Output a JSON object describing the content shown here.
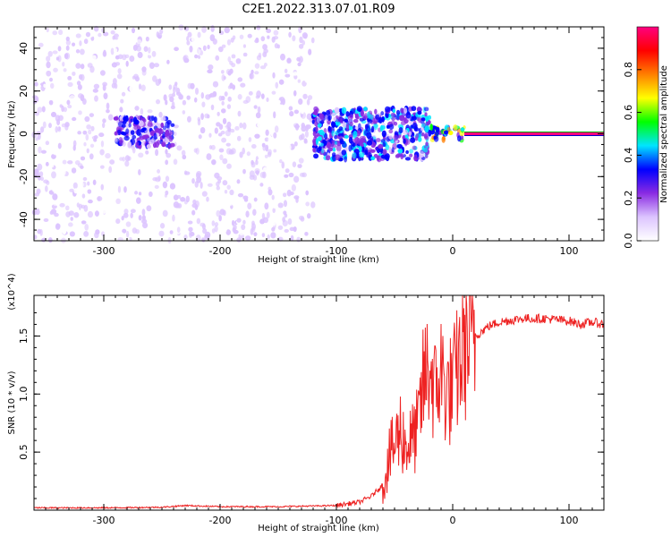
{
  "figure_title": "C2E1.2022.313.07.01.R09",
  "colors": {
    "snr_line": "#ee2222",
    "dots": "#7a22ee",
    "frame": "#000000"
  },
  "chart_data": [
    {
      "type": "heatmap",
      "xlabel": "Height of straight line (km)",
      "ylabel": "Frequency (Hz)",
      "xlim": [
        -360,
        130
      ],
      "ylim": [
        -50,
        50
      ],
      "xticks": [
        -300,
        -200,
        -100,
        0,
        100
      ],
      "xtick_labels": [
        "-300",
        "-200",
        "-100",
        "0",
        "100"
      ],
      "yticks": [
        -40,
        -20,
        0,
        20,
        40
      ],
      "ytick_labels": [
        "-40",
        "-20",
        "0",
        "20",
        "40"
      ],
      "colorbar": {
        "label": "Normalized spectral amplitude",
        "range": [
          0,
          1
        ],
        "ticks": [
          0.0,
          0.2,
          0.4,
          0.6,
          0.8
        ],
        "tick_labels": [
          "0.0",
          "0.2",
          "0.4",
          "0.6",
          "0.8"
        ],
        "colormap": [
          "#ffffff",
          "#dcc4ff",
          "#8a2be2",
          "#0000ff",
          "#00e5ff",
          "#00ff00",
          "#ffff00",
          "#ff7f00",
          "#ff0000",
          "#ff0080"
        ]
      },
      "features": [
        {
          "x_range": [
            -360,
            -120
          ],
          "y_range": [
            -50,
            50
          ],
          "amplitude": 0.1,
          "note": "scattered noise"
        },
        {
          "x_range": [
            -290,
            -240
          ],
          "y_range": [
            -6,
            8
          ],
          "amplitude": 0.3
        },
        {
          "x_range": [
            -120,
            -20
          ],
          "y_range": [
            -12,
            12
          ],
          "amplitude": 0.35
        },
        {
          "x_range": [
            -20,
            10
          ],
          "y_range": [
            -3,
            4
          ],
          "amplitude": 0.6
        },
        {
          "x_range": [
            10,
            130
          ],
          "y_range": [
            -1,
            1
          ],
          "amplitude": 0.95
        }
      ]
    },
    {
      "type": "line",
      "xlabel": "Height of straight line (km)",
      "ylabel": "SNR (10 * v/v)",
      "y_multiplier": "(x10^4)",
      "xlim": [
        -360,
        130
      ],
      "ylim": [
        0,
        1.85
      ],
      "xticks": [
        -300,
        -200,
        -100,
        0,
        100
      ],
      "xtick_labels": [
        "-300",
        "-200",
        "-100",
        "0",
        "100"
      ],
      "yticks": [
        0.5,
        1.0,
        1.5
      ],
      "ytick_labels": [
        "0.5",
        "1.0",
        "1.5"
      ],
      "series": [
        {
          "x": [
            -360,
            -300,
            -250,
            -230,
            -200,
            -150,
            -100,
            -80,
            -70,
            -60,
            -55,
            -50,
            -45,
            -40,
            -35,
            -30,
            -25,
            -20,
            -15,
            -10,
            -5,
            0,
            5,
            10,
            20,
            30,
            40,
            60,
            80,
            100,
            110,
            120,
            130
          ],
          "y": [
            0.02,
            0.02,
            0.025,
            0.04,
            0.03,
            0.03,
            0.04,
            0.07,
            0.12,
            0.22,
            0.45,
            0.55,
            0.7,
            0.55,
            0.6,
            0.7,
            1.1,
            1.25,
            1.0,
            1.2,
            1.0,
            1.05,
            1.25,
            1.4,
            1.5,
            1.58,
            1.62,
            1.65,
            1.65,
            1.63,
            1.6,
            1.62,
            1.6
          ]
        }
      ]
    }
  ]
}
